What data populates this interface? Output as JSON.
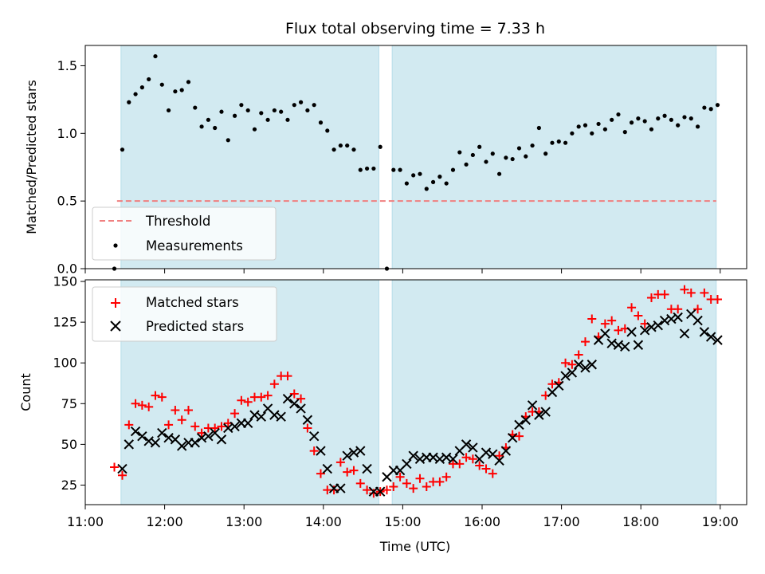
{
  "chart_data": [
    {
      "type": "scatter",
      "panel": "top",
      "title": "Flux total observing time = 7.33 h",
      "xlabel": "",
      "ylabel": "Matched/Predicted stars",
      "xlim": [
        "11:00",
        "19:20"
      ],
      "ylim": [
        0,
        1.65
      ],
      "y_ticks": [
        0.0,
        0.5,
        1.0,
        1.5
      ],
      "y_tick_labels": [
        "0.0",
        "0.5",
        "1.0",
        "1.5"
      ],
      "grid": false,
      "legend_position": "lower-left",
      "shaded_intervals": [
        [
          "11:27",
          "14:42"
        ],
        [
          "14:52",
          "18:57"
        ]
      ],
      "shade_color": "#add8e6",
      "threshold": {
        "name": "Threshold",
        "value": 0.5,
        "x_range": [
          "11:24",
          "18:57"
        ],
        "color": "#f08080"
      },
      "series": [
        {
          "name": "Measurements",
          "color": "#000000",
          "x": [
            "11:22",
            "11:28",
            "11:33",
            "11:38",
            "11:43",
            "11:48",
            "11:53",
            "11:58",
            "12:03",
            "12:08",
            "12:13",
            "12:18",
            "12:23",
            "12:28",
            "12:33",
            "12:38",
            "12:43",
            "12:48",
            "12:53",
            "12:58",
            "13:03",
            "13:08",
            "13:13",
            "13:18",
            "13:23",
            "13:28",
            "13:33",
            "13:38",
            "13:43",
            "13:48",
            "13:53",
            "13:58",
            "14:03",
            "14:08",
            "14:13",
            "14:18",
            "14:23",
            "14:28",
            "14:33",
            "14:38",
            "14:43",
            "14:48",
            "14:53",
            "14:58",
            "15:03",
            "15:08",
            "15:13",
            "15:18",
            "15:23",
            "15:28",
            "15:33",
            "15:38",
            "15:43",
            "15:48",
            "15:53",
            "15:58",
            "16:03",
            "16:08",
            "16:13",
            "16:18",
            "16:23",
            "16:28",
            "16:33",
            "16:38",
            "16:43",
            "16:48",
            "16:53",
            "16:58",
            "17:03",
            "17:08",
            "17:13",
            "17:18",
            "17:23",
            "17:28",
            "17:33",
            "17:38",
            "17:43",
            "17:48",
            "17:53",
            "17:58",
            "18:03",
            "18:08",
            "18:13",
            "18:18",
            "18:23",
            "18:28",
            "18:33",
            "18:38",
            "18:43",
            "18:48",
            "18:53",
            "18:58"
          ],
          "values": [
            0.0,
            0.88,
            1.23,
            1.29,
            1.34,
            1.4,
            1.57,
            1.36,
            1.17,
            1.31,
            1.32,
            1.38,
            1.19,
            1.05,
            1.1,
            1.04,
            1.16,
            0.95,
            1.13,
            1.21,
            1.17,
            1.03,
            1.15,
            1.1,
            1.17,
            1.16,
            1.1,
            1.21,
            1.23,
            1.17,
            1.21,
            1.08,
            1.02,
            0.88,
            0.91,
            0.91,
            0.88,
            0.73,
            0.74,
            0.74,
            0.9,
            0.0,
            0.73,
            0.73,
            0.63,
            0.69,
            0.7,
            0.59,
            0.64,
            0.68,
            0.63,
            0.73,
            0.86,
            0.77,
            0.84,
            0.9,
            0.79,
            0.85,
            0.7,
            0.82,
            0.81,
            0.89,
            0.83,
            0.91,
            1.04,
            0.85,
            0.93,
            0.94,
            0.93,
            1.0,
            1.05,
            1.06,
            1.0,
            1.07,
            1.03,
            1.1,
            1.14,
            1.01,
            1.08,
            1.11,
            1.09,
            1.03,
            1.11,
            1.13,
            1.1,
            1.06,
            1.12,
            1.11,
            1.05,
            1.19,
            1.18,
            1.21
          ]
        }
      ]
    },
    {
      "type": "scatter",
      "panel": "bottom",
      "title": "",
      "xlabel": "Time (UTC)",
      "ylabel": "Count",
      "xlim": [
        "11:00",
        "19:20"
      ],
      "ylim": [
        13,
        151
      ],
      "x_ticks": [
        "11:00",
        "12:00",
        "13:00",
        "14:00",
        "15:00",
        "16:00",
        "17:00",
        "18:00",
        "19:00"
      ],
      "y_ticks": [
        25,
        50,
        75,
        100,
        125,
        150
      ],
      "y_tick_labels": [
        "25",
        "50",
        "75",
        "100",
        "125",
        "150"
      ],
      "grid": false,
      "legend_position": "upper-left",
      "shaded_intervals": [
        [
          "11:27",
          "14:42"
        ],
        [
          "14:52",
          "18:57"
        ]
      ],
      "shade_color": "#add8e6",
      "series": [
        {
          "name": "Matched stars",
          "marker": "plus",
          "color": "#ff0000",
          "x": [
            "11:22",
            "11:28",
            "11:33",
            "11:38",
            "11:43",
            "11:48",
            "11:53",
            "11:58",
            "12:03",
            "12:08",
            "12:13",
            "12:18",
            "12:23",
            "12:28",
            "12:33",
            "12:38",
            "12:43",
            "12:48",
            "12:53",
            "12:58",
            "13:03",
            "13:08",
            "13:13",
            "13:18",
            "13:23",
            "13:28",
            "13:33",
            "13:38",
            "13:43",
            "13:48",
            "13:53",
            "13:58",
            "14:03",
            "14:08",
            "14:13",
            "14:18",
            "14:23",
            "14:28",
            "14:33",
            "14:38",
            "14:43",
            "14:48",
            "14:53",
            "14:58",
            "15:03",
            "15:08",
            "15:13",
            "15:18",
            "15:23",
            "15:28",
            "15:33",
            "15:38",
            "15:43",
            "15:48",
            "15:53",
            "15:58",
            "16:03",
            "16:08",
            "16:13",
            "16:18",
            "16:23",
            "16:28",
            "16:33",
            "16:38",
            "16:43",
            "16:48",
            "16:53",
            "16:58",
            "17:03",
            "17:08",
            "17:13",
            "17:18",
            "17:23",
            "17:28",
            "17:33",
            "17:38",
            "17:43",
            "17:48",
            "17:53",
            "17:58",
            "18:03",
            "18:08",
            "18:13",
            "18:18",
            "18:23",
            "18:28",
            "18:33",
            "18:38",
            "18:43",
            "18:48",
            "18:53",
            "18:58"
          ],
          "values": [
            36,
            31,
            62,
            75,
            74,
            73,
            80,
            79,
            62,
            71,
            65,
            71,
            61,
            57,
            60,
            60,
            61,
            63,
            69,
            77,
            76,
            79,
            79,
            80,
            87,
            92,
            92,
            81,
            78,
            60,
            46,
            32,
            22,
            22,
            39,
            33,
            34,
            26,
            22,
            20,
            21,
            22,
            24,
            30,
            26,
            23,
            29,
            24,
            27,
            27,
            30,
            38,
            38,
            42,
            41,
            37,
            35,
            32,
            43,
            48,
            56,
            55,
            67,
            70,
            70,
            80,
            87,
            88,
            100,
            99,
            105,
            113,
            127,
            116,
            124,
            126,
            120,
            121,
            134,
            129,
            124,
            140,
            142,
            142,
            133,
            133,
            145,
            143,
            133,
            143,
            139,
            139
          ]
        },
        {
          "name": "Predicted stars",
          "marker": "x",
          "color": "#000000",
          "x": [
            "11:28",
            "11:33",
            "11:38",
            "11:43",
            "11:48",
            "11:53",
            "11:58",
            "12:03",
            "12:08",
            "12:13",
            "12:18",
            "12:23",
            "12:28",
            "12:33",
            "12:38",
            "12:43",
            "12:48",
            "12:53",
            "12:58",
            "13:03",
            "13:08",
            "13:13",
            "13:18",
            "13:23",
            "13:28",
            "13:33",
            "13:38",
            "13:43",
            "13:48",
            "13:53",
            "13:58",
            "14:03",
            "14:08",
            "14:13",
            "14:18",
            "14:23",
            "14:28",
            "14:33",
            "14:38",
            "14:43",
            "14:48",
            "14:53",
            "14:58",
            "15:03",
            "15:08",
            "15:13",
            "15:18",
            "15:23",
            "15:28",
            "15:33",
            "15:38",
            "15:43",
            "15:48",
            "15:53",
            "15:58",
            "16:03",
            "16:08",
            "16:13",
            "16:18",
            "16:23",
            "16:28",
            "16:33",
            "16:38",
            "16:43",
            "16:48",
            "16:53",
            "16:58",
            "17:03",
            "17:08",
            "17:13",
            "17:18",
            "17:23",
            "17:28",
            "17:33",
            "17:38",
            "17:43",
            "17:48",
            "17:53",
            "17:58",
            "18:03",
            "18:08",
            "18:13",
            "18:18",
            "18:23",
            "18:28",
            "18:33",
            "18:38",
            "18:43",
            "18:48",
            "18:53",
            "18:58"
          ],
          "values": [
            35,
            50,
            58,
            55,
            52,
            51,
            57,
            54,
            53,
            49,
            51,
            51,
            54,
            55,
            57,
            53,
            60,
            61,
            63,
            63,
            68,
            67,
            72,
            68,
            67,
            78,
            75,
            72,
            65,
            55,
            46,
            35,
            23,
            23,
            43,
            45,
            46,
            35,
            21,
            21,
            30,
            34,
            34,
            38,
            43,
            41,
            42,
            42,
            41,
            42,
            41,
            46,
            50,
            48,
            41,
            45,
            44,
            40,
            46,
            54,
            62,
            65,
            74,
            68,
            70,
            82,
            86,
            92,
            94,
            99,
            97,
            99,
            114,
            118,
            112,
            111,
            110,
            119,
            111,
            120,
            122,
            123,
            126,
            127,
            128,
            118,
            130,
            126,
            119,
            116,
            114
          ]
        }
      ]
    }
  ]
}
